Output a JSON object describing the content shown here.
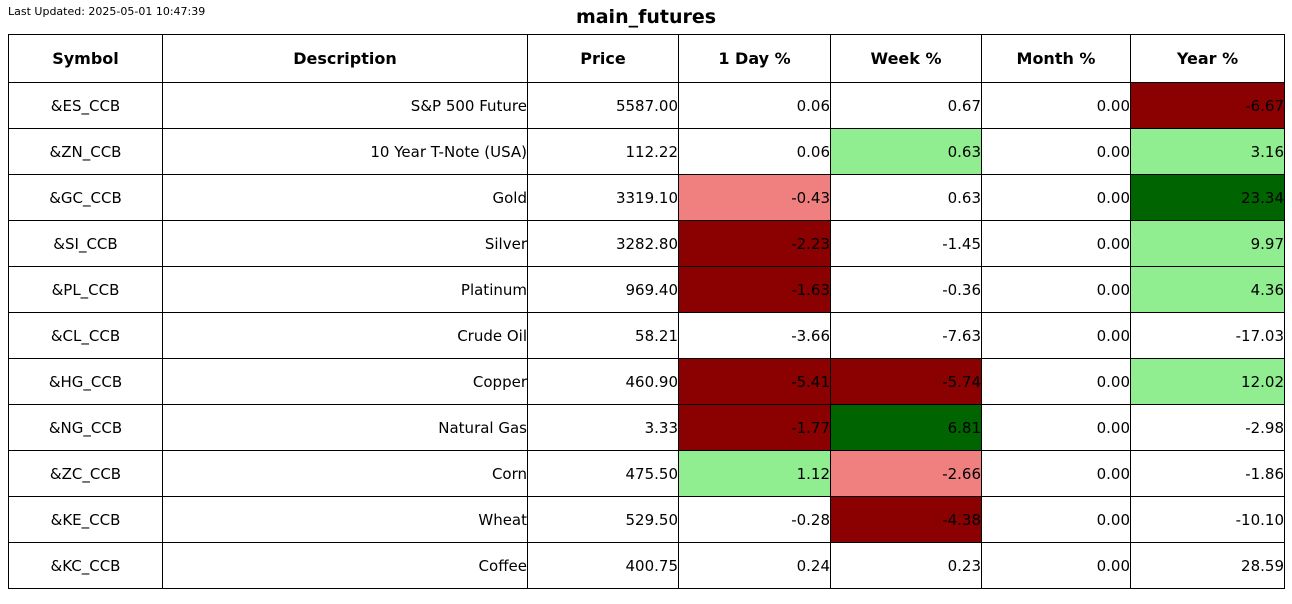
{
  "meta": {
    "last_updated": "Last Updated: 2025-05-01 10:47:39",
    "title": "main_futures"
  },
  "colors": {
    "white": "#ffffff",
    "dark_red": "#8b0000",
    "light_red": "#f08080",
    "light_green": "#90ee90",
    "dark_green": "#006400",
    "border": "#000000",
    "text": "#000000"
  },
  "chart_data": {
    "type": "table",
    "title": "main_futures",
    "columns": [
      "Symbol",
      "Description",
      "Price",
      "1 Day %",
      "Week %",
      "Month %",
      "Year %"
    ],
    "rows": [
      {
        "symbol": "&ES_CCB",
        "description": "S&P 500 Future",
        "price": "5587.00",
        "day_pct": {
          "value": "0.06",
          "bg": "white"
        },
        "week_pct": {
          "value": "0.67",
          "bg": "white"
        },
        "month_pct": {
          "value": "0.00",
          "bg": "white"
        },
        "year_pct": {
          "value": "-6.67",
          "bg": "dark_red"
        }
      },
      {
        "symbol": "&ZN_CCB",
        "description": "10 Year T-Note (USA)",
        "price": "112.22",
        "day_pct": {
          "value": "0.06",
          "bg": "white"
        },
        "week_pct": {
          "value": "0.63",
          "bg": "light_green"
        },
        "month_pct": {
          "value": "0.00",
          "bg": "white"
        },
        "year_pct": {
          "value": "3.16",
          "bg": "light_green"
        }
      },
      {
        "symbol": "&GC_CCB",
        "description": "Gold",
        "price": "3319.10",
        "day_pct": {
          "value": "-0.43",
          "bg": "light_red"
        },
        "week_pct": {
          "value": "0.63",
          "bg": "white"
        },
        "month_pct": {
          "value": "0.00",
          "bg": "white"
        },
        "year_pct": {
          "value": "23.34",
          "bg": "dark_green"
        }
      },
      {
        "symbol": "&SI_CCB",
        "description": "Silver",
        "price": "3282.80",
        "day_pct": {
          "value": "-2.23",
          "bg": "dark_red"
        },
        "week_pct": {
          "value": "-1.45",
          "bg": "white"
        },
        "month_pct": {
          "value": "0.00",
          "bg": "white"
        },
        "year_pct": {
          "value": "9.97",
          "bg": "light_green"
        }
      },
      {
        "symbol": "&PL_CCB",
        "description": "Platinum",
        "price": "969.40",
        "day_pct": {
          "value": "-1.63",
          "bg": "dark_red"
        },
        "week_pct": {
          "value": "-0.36",
          "bg": "white"
        },
        "month_pct": {
          "value": "0.00",
          "bg": "white"
        },
        "year_pct": {
          "value": "4.36",
          "bg": "light_green"
        }
      },
      {
        "symbol": "&CL_CCB",
        "description": "Crude Oil",
        "price": "58.21",
        "day_pct": {
          "value": "-3.66",
          "bg": "white"
        },
        "week_pct": {
          "value": "-7.63",
          "bg": "white"
        },
        "month_pct": {
          "value": "0.00",
          "bg": "white"
        },
        "year_pct": {
          "value": "-17.03",
          "bg": "white"
        }
      },
      {
        "symbol": "&HG_CCB",
        "description": "Copper",
        "price": "460.90",
        "day_pct": {
          "value": "-5.41",
          "bg": "dark_red"
        },
        "week_pct": {
          "value": "-5.74",
          "bg": "dark_red"
        },
        "month_pct": {
          "value": "0.00",
          "bg": "white"
        },
        "year_pct": {
          "value": "12.02",
          "bg": "light_green"
        }
      },
      {
        "symbol": "&NG_CCB",
        "description": "Natural Gas",
        "price": "3.33",
        "day_pct": {
          "value": "-1.77",
          "bg": "dark_red"
        },
        "week_pct": {
          "value": "6.81",
          "bg": "dark_green"
        },
        "month_pct": {
          "value": "0.00",
          "bg": "white"
        },
        "year_pct": {
          "value": "-2.98",
          "bg": "white"
        }
      },
      {
        "symbol": "&ZC_CCB",
        "description": "Corn",
        "price": "475.50",
        "day_pct": {
          "value": "1.12",
          "bg": "light_green"
        },
        "week_pct": {
          "value": "-2.66",
          "bg": "light_red"
        },
        "month_pct": {
          "value": "0.00",
          "bg": "white"
        },
        "year_pct": {
          "value": "-1.86",
          "bg": "white"
        }
      },
      {
        "symbol": "&KE_CCB",
        "description": "Wheat",
        "price": "529.50",
        "day_pct": {
          "value": "-0.28",
          "bg": "white"
        },
        "week_pct": {
          "value": "-4.38",
          "bg": "dark_red"
        },
        "month_pct": {
          "value": "0.00",
          "bg": "white"
        },
        "year_pct": {
          "value": "-10.10",
          "bg": "white"
        }
      },
      {
        "symbol": "&KC_CCB",
        "description": "Coffee",
        "price": "400.75",
        "day_pct": {
          "value": "0.24",
          "bg": "white"
        },
        "week_pct": {
          "value": "0.23",
          "bg": "white"
        },
        "month_pct": {
          "value": "0.00",
          "bg": "white"
        },
        "year_pct": {
          "value": "28.59",
          "bg": "white"
        }
      }
    ]
  }
}
